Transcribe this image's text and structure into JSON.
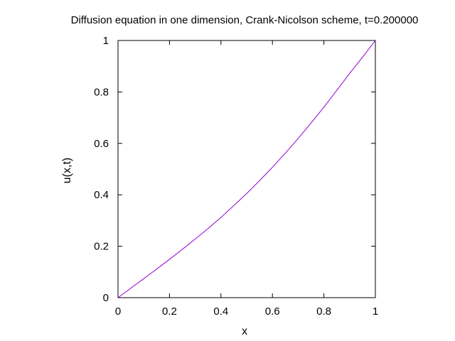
{
  "chart_data": {
    "type": "line",
    "title": "Diffusion equation in one dimension, Crank-Nicolson scheme, t=0.200000",
    "xlabel": "x",
    "ylabel": "u(x,t)",
    "xlim": [
      0,
      1
    ],
    "ylim": [
      0,
      1
    ],
    "xticks": [
      0,
      0.2,
      0.4,
      0.6,
      0.8,
      1
    ],
    "xtick_labels": [
      "0",
      "0.2",
      "0.4",
      "0.6",
      "0.8",
      "1"
    ],
    "yticks": [
      0,
      0.2,
      0.4,
      0.6,
      0.8,
      1
    ],
    "ytick_labels": [
      "0",
      "0.2",
      "0.4",
      "0.6",
      "0.8",
      "1"
    ],
    "grid": false,
    "legend": false,
    "series": [
      {
        "color": "#9400d3",
        "x": [
          0,
          0.05,
          0.1,
          0.15,
          0.2,
          0.25,
          0.3,
          0.35,
          0.4,
          0.45,
          0.5,
          0.55,
          0.6,
          0.65,
          0.7,
          0.75,
          0.8,
          0.85,
          0.9,
          0.95,
          1
        ],
        "y": [
          0,
          0.037,
          0.074,
          0.111,
          0.149,
          0.188,
          0.228,
          0.269,
          0.312,
          0.358,
          0.405,
          0.455,
          0.507,
          0.562,
          0.619,
          0.679,
          0.741,
          0.806,
          0.872,
          0.935,
          1
        ]
      }
    ]
  }
}
